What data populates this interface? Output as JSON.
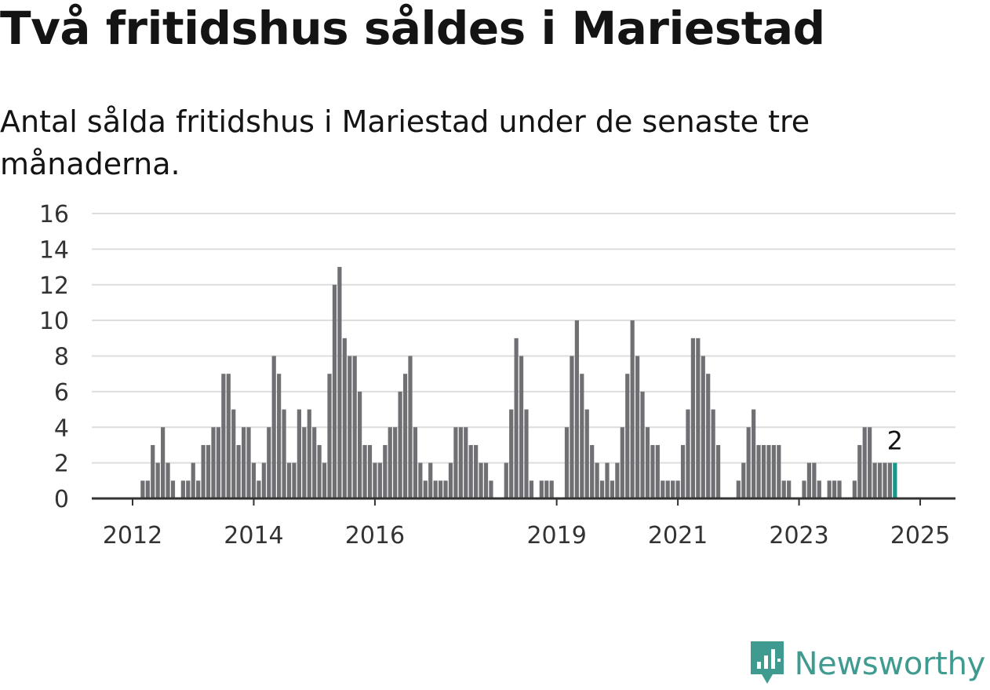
{
  "header": {
    "title": "Två fritidshus såldes i Mariestad",
    "subtitle": "Antal sålda fritidshus i Mariestad under de senaste tre månaderna."
  },
  "brand": {
    "name": "Newsworthy",
    "icon": "newsworthy-logo-icon",
    "color": "#3f9b90"
  },
  "chart_data": {
    "type": "bar",
    "title": "Två fritidshus såldes i Mariestad",
    "subtitle": "Antal sålda fritidshus i Mariestad under de senaste tre månaderna.",
    "ylim": [
      0,
      16
    ],
    "y_ticks": [
      0,
      2,
      4,
      6,
      8,
      10,
      12,
      14,
      16
    ],
    "x_ticks": [
      "2012",
      "2014",
      "2016",
      "2019",
      "2021",
      "2023",
      "2025"
    ],
    "grid": true,
    "bar_color": "#707074",
    "highlight_color": "#16978a",
    "last_value_label": "2",
    "series": [
      {
        "values": [
          0,
          0,
          1,
          1,
          3,
          2,
          4,
          2,
          1,
          0,
          1,
          1,
          2,
          1,
          3,
          3,
          4,
          4,
          7,
          7,
          5,
          3,
          4,
          4,
          2,
          1,
          2,
          4,
          8,
          7,
          5,
          2,
          2,
          5,
          4,
          5,
          4,
          3,
          2,
          7,
          12,
          13,
          9,
          8,
          8,
          6,
          3,
          3,
          2,
          2,
          3,
          4,
          4,
          6,
          7,
          8,
          4,
          2,
          1,
          2,
          1,
          1,
          1,
          2,
          4,
          4,
          4,
          3,
          3,
          2,
          2,
          1,
          0,
          0,
          2,
          5,
          9,
          8,
          5,
          1,
          0,
          1,
          1,
          1,
          0,
          0,
          4,
          8,
          10,
          7,
          5,
          3,
          2,
          1,
          2,
          1,
          2,
          4,
          7,
          10,
          8,
          6,
          4,
          3,
          3,
          1,
          1,
          1,
          1,
          3,
          5,
          9,
          9,
          8,
          7,
          5,
          3,
          0,
          0,
          0,
          1,
          2,
          4,
          5,
          3,
          3,
          3,
          3,
          3,
          1,
          1,
          0,
          0,
          1,
          2,
          2,
          1,
          0,
          1,
          1,
          1,
          0,
          0,
          1,
          3,
          4,
          4,
          2,
          2,
          2,
          2,
          2
        ]
      }
    ]
  }
}
